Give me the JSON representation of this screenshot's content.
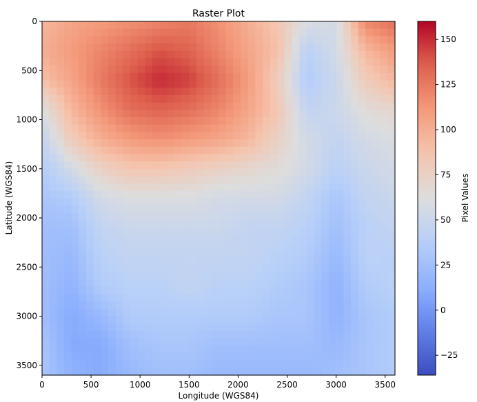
{
  "chart_data": {
    "type": "heatmap",
    "title": "Raster Plot",
    "xlabel": "Longitude (WGS84)",
    "ylabel": "Latitude (WGS84)",
    "xlim": [
      0,
      3600
    ],
    "ylim": [
      3600,
      0
    ],
    "xticks": [
      0,
      500,
      1000,
      1500,
      2000,
      2500,
      3000,
      3500
    ],
    "yticks": [
      0,
      500,
      1000,
      1500,
      2000,
      2500,
      3000,
      3500
    ],
    "colormap": "coolwarm",
    "colorbar": {
      "label": "Pixel Values",
      "vmin": -36,
      "vmax": 160,
      "ticks": [
        -25,
        0,
        25,
        50,
        75,
        100,
        125,
        150
      ]
    },
    "grid": false,
    "description_values": {
      "rows_y": [
        0,
        300,
        600,
        900,
        1200,
        1500,
        1800,
        2100,
        2400,
        2700,
        3000,
        3300,
        3600
      ],
      "cols_x": [
        0,
        300,
        600,
        900,
        1200,
        1500,
        1800,
        2100,
        2400,
        2700,
        3000,
        3300,
        3600
      ],
      "values": [
        [
          95,
          105,
          110,
          115,
          120,
          125,
          115,
          100,
          85,
          60,
          55,
          120,
          130
        ],
        [
          100,
          110,
          120,
          130,
          140,
          135,
          120,
          105,
          90,
          40,
          55,
          95,
          110
        ],
        [
          90,
          105,
          125,
          140,
          150,
          145,
          130,
          110,
          80,
          35,
          50,
          80,
          95
        ],
        [
          60,
          95,
          115,
          130,
          135,
          130,
          120,
          105,
          85,
          45,
          50,
          65,
          70
        ],
        [
          45,
          80,
          100,
          110,
          115,
          110,
          105,
          95,
          75,
          55,
          45,
          55,
          60
        ],
        [
          35,
          55,
          75,
          85,
          85,
          80,
          75,
          70,
          65,
          55,
          40,
          50,
          55
        ],
        [
          30,
          35,
          55,
          60,
          60,
          60,
          55,
          55,
          55,
          45,
          30,
          45,
          50
        ],
        [
          25,
          25,
          45,
          50,
          50,
          50,
          50,
          45,
          45,
          40,
          25,
          40,
          45
        ],
        [
          25,
          20,
          40,
          45,
          45,
          45,
          45,
          45,
          40,
          35,
          20,
          40,
          40
        ],
        [
          25,
          15,
          35,
          40,
          40,
          45,
          40,
          40,
          35,
          30,
          15,
          35,
          40
        ],
        [
          25,
          10,
          20,
          35,
          35,
          35,
          35,
          35,
          30,
          30,
          15,
          30,
          35
        ],
        [
          30,
          10,
          10,
          25,
          30,
          30,
          25,
          25,
          25,
          25,
          20,
          30,
          35
        ],
        [
          30,
          15,
          10,
          20,
          25,
          25,
          20,
          20,
          20,
          20,
          25,
          30,
          35
        ]
      ]
    }
  }
}
